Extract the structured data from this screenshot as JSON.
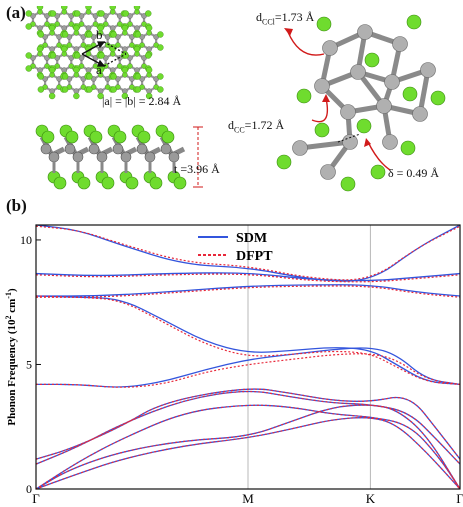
{
  "panel_a": {
    "label": "(a)",
    "lattice_eq": "|a| = |b| = 2.84 Å",
    "vec_a": "a",
    "vec_b": "b",
    "thickness": "t =3.96 Å",
    "dccl": "d",
    "dccl_sub": "CCl",
    "dccl_val": "=1.73 Å",
    "dcc": "d",
    "dcc_sub": "CC",
    "dcc_val": "=1.72 Å",
    "delta": "δ = 0.49 Å"
  },
  "panel_b": {
    "label": "(b)"
  },
  "chart_data": {
    "type": "line",
    "ylabel": "Phonon Frequency (10",
    "ylabel_sup": "2",
    "ylabel_unit": " cm",
    "ylabel_sup2": "-1",
    "ylabel_close": ")",
    "ylim": [
      0,
      10.6
    ],
    "yticks": [
      "0",
      "5",
      "10"
    ],
    "yticks_values": [
      0,
      5,
      10
    ],
    "kpoints": [
      "Γ",
      "M",
      "K",
      "Γ"
    ],
    "kpoint_positions": [
      0,
      0.5,
      0.7887,
      1.0
    ],
    "legend": [
      {
        "name": "SDM",
        "color": "#3355dd",
        "style": "solid"
      },
      {
        "name": "DFPT",
        "color": "#e8283a",
        "style": "dotted"
      }
    ],
    "legend_position": "top-center",
    "series": [
      {
        "name": "SDM",
        "bands": [
          [
            [
              0,
              0
            ],
            [
              0.08,
              0.8
            ],
            [
              0.2,
              1.5
            ],
            [
              0.35,
              1.95
            ],
            [
              0.5,
              2.1
            ],
            [
              0.6,
              2.7
            ],
            [
              0.7,
              3.3
            ],
            [
              0.7887,
              3.4
            ],
            [
              0.85,
              3.2
            ],
            [
              0.92,
              2.2
            ],
            [
              1,
              0
            ]
          ],
          [
            [
              0,
              0
            ],
            [
              0.08,
              0.5
            ],
            [
              0.2,
              1.2
            ],
            [
              0.35,
              1.75
            ],
            [
              0.5,
              2.05
            ],
            [
              0.6,
              2.4
            ],
            [
              0.7,
              2.8
            ],
            [
              0.7887,
              2.9
            ],
            [
              0.85,
              2.6
            ],
            [
              0.92,
              1.5
            ],
            [
              1,
              0
            ]
          ],
          [
            [
              0,
              0
            ],
            [
              0.1,
              1.1
            ],
            [
              0.2,
              2.0
            ],
            [
              0.35,
              3.1
            ],
            [
              0.5,
              3.4
            ],
            [
              0.6,
              3.3
            ],
            [
              0.7,
              3.0
            ],
            [
              0.7887,
              2.9
            ],
            [
              0.88,
              2.6
            ],
            [
              0.95,
              1.3
            ],
            [
              1,
              0
            ]
          ],
          [
            [
              0,
              1.0
            ],
            [
              0.1,
              1.7
            ],
            [
              0.2,
              2.6
            ],
            [
              0.35,
              3.6
            ],
            [
              0.5,
              4.0
            ],
            [
              0.6,
              3.7
            ],
            [
              0.7,
              3.45
            ],
            [
              0.7887,
              3.4
            ],
            [
              0.88,
              3.1
            ],
            [
              0.95,
              1.9
            ],
            [
              1,
              1.0
            ]
          ],
          [
            [
              0,
              1.2
            ],
            [
              0.08,
              1.6
            ],
            [
              0.2,
              2.5
            ],
            [
              0.3,
              3.5
            ],
            [
              0.5,
              4.1
            ],
            [
              0.6,
              3.85
            ],
            [
              0.7,
              3.55
            ],
            [
              0.7887,
              3.5
            ],
            [
              0.88,
              3.8
            ],
            [
              0.95,
              2.3
            ],
            [
              1,
              1.2
            ]
          ],
          [
            [
              0,
              4.2
            ],
            [
              0.1,
              4.2
            ],
            [
              0.2,
              4.05
            ],
            [
              0.3,
              4.3
            ],
            [
              0.4,
              4.8
            ],
            [
              0.5,
              5.2
            ],
            [
              0.6,
              5.4
            ],
            [
              0.7,
              5.6
            ],
            [
              0.7887,
              5.7
            ],
            [
              0.85,
              5.4
            ],
            [
              0.92,
              4.4
            ],
            [
              1,
              4.2
            ]
          ],
          [
            [
              0,
              7.75
            ],
            [
              0.1,
              7.7
            ],
            [
              0.2,
              7.65
            ],
            [
              0.3,
              6.8
            ],
            [
              0.4,
              5.9
            ],
            [
              0.5,
              5.45
            ],
            [
              0.6,
              5.55
            ],
            [
              0.7,
              5.7
            ],
            [
              0.7887,
              5.6
            ],
            [
              0.85,
              5.0
            ],
            [
              0.92,
              4.3
            ],
            [
              1,
              4.2
            ]
          ],
          [
            [
              0,
              7.75
            ],
            [
              0.15,
              7.75
            ],
            [
              0.3,
              7.9
            ],
            [
              0.5,
              8.15
            ],
            [
              0.65,
              8.2
            ],
            [
              0.7887,
              8.2
            ],
            [
              0.9,
              7.9
            ],
            [
              1,
              7.75
            ]
          ],
          [
            [
              0,
              8.65
            ],
            [
              0.15,
              8.55
            ],
            [
              0.3,
              8.65
            ],
            [
              0.5,
              8.7
            ],
            [
              0.65,
              8.4
            ],
            [
              0.7887,
              8.35
            ],
            [
              0.9,
              8.5
            ],
            [
              1,
              8.65
            ]
          ],
          [
            [
              0,
              10.6
            ],
            [
              0.1,
              10.4
            ],
            [
              0.2,
              9.8
            ],
            [
              0.35,
              9.0
            ],
            [
              0.5,
              8.9
            ],
            [
              0.65,
              8.4
            ],
            [
              0.7887,
              8.3
            ],
            [
              0.9,
              9.7
            ],
            [
              1,
              10.6
            ]
          ]
        ]
      },
      {
        "name": "DFPT",
        "bands": [
          [
            [
              0,
              0
            ],
            [
              0.08,
              0.8
            ],
            [
              0.2,
              1.5
            ],
            [
              0.35,
              1.95
            ],
            [
              0.5,
              2.1
            ],
            [
              0.6,
              2.7
            ],
            [
              0.7,
              3.3
            ],
            [
              0.7887,
              3.4
            ],
            [
              0.85,
              3.2
            ],
            [
              0.92,
              2.2
            ],
            [
              1,
              0
            ]
          ],
          [
            [
              0,
              0
            ],
            [
              0.08,
              0.5
            ],
            [
              0.2,
              1.2
            ],
            [
              0.35,
              1.75
            ],
            [
              0.5,
              2.05
            ],
            [
              0.6,
              2.4
            ],
            [
              0.7,
              2.8
            ],
            [
              0.7887,
              2.9
            ],
            [
              0.85,
              2.6
            ],
            [
              0.92,
              1.5
            ],
            [
              1,
              0
            ]
          ],
          [
            [
              0,
              0
            ],
            [
              0.1,
              1.1
            ],
            [
              0.2,
              2.0
            ],
            [
              0.35,
              3.1
            ],
            [
              0.5,
              3.4
            ],
            [
              0.6,
              3.3
            ],
            [
              0.7,
              3.0
            ],
            [
              0.7887,
              2.9
            ],
            [
              0.88,
              2.6
            ],
            [
              0.95,
              1.3
            ],
            [
              1,
              0
            ]
          ],
          [
            [
              0,
              1.0
            ],
            [
              0.1,
              1.7
            ],
            [
              0.2,
              2.6
            ],
            [
              0.35,
              3.6
            ],
            [
              0.5,
              4.0
            ],
            [
              0.6,
              3.7
            ],
            [
              0.7,
              3.45
            ],
            [
              0.7887,
              3.4
            ],
            [
              0.88,
              3.1
            ],
            [
              0.95,
              1.9
            ],
            [
              1,
              1.0
            ]
          ],
          [
            [
              0,
              1.2
            ],
            [
              0.08,
              1.6
            ],
            [
              0.2,
              2.5
            ],
            [
              0.3,
              3.5
            ],
            [
              0.5,
              4.1
            ],
            [
              0.6,
              3.85
            ],
            [
              0.7,
              3.55
            ],
            [
              0.7887,
              3.5
            ],
            [
              0.88,
              3.8
            ],
            [
              0.95,
              2.3
            ],
            [
              1,
              1.2
            ]
          ],
          [
            [
              0,
              4.2
            ],
            [
              0.1,
              4.2
            ],
            [
              0.2,
              4.05
            ],
            [
              0.3,
              4.2
            ],
            [
              0.4,
              4.7
            ],
            [
              0.5,
              5.0
            ],
            [
              0.6,
              5.2
            ],
            [
              0.7,
              5.4
            ],
            [
              0.7887,
              5.45
            ],
            [
              0.85,
              5.2
            ],
            [
              0.92,
              4.4
            ],
            [
              1,
              4.2
            ]
          ],
          [
            [
              0,
              7.75
            ],
            [
              0.1,
              7.7
            ],
            [
              0.2,
              7.6
            ],
            [
              0.3,
              6.7
            ],
            [
              0.4,
              5.8
            ],
            [
              0.5,
              5.3
            ],
            [
              0.6,
              5.4
            ],
            [
              0.7,
              5.55
            ],
            [
              0.7887,
              5.45
            ],
            [
              0.85,
              4.9
            ],
            [
              0.92,
              4.3
            ],
            [
              1,
              4.2
            ]
          ],
          [
            [
              0,
              7.7
            ],
            [
              0.15,
              7.7
            ],
            [
              0.3,
              7.85
            ],
            [
              0.5,
              8.1
            ],
            [
              0.65,
              8.15
            ],
            [
              0.7887,
              8.15
            ],
            [
              0.9,
              7.85
            ],
            [
              1,
              7.7
            ]
          ],
          [
            [
              0,
              8.6
            ],
            [
              0.15,
              8.5
            ],
            [
              0.3,
              8.6
            ],
            [
              0.5,
              8.65
            ],
            [
              0.65,
              8.35
            ],
            [
              0.7887,
              8.3
            ],
            [
              0.9,
              8.45
            ],
            [
              1,
              8.6
            ]
          ],
          [
            [
              0,
              10.55
            ],
            [
              0.1,
              10.4
            ],
            [
              0.2,
              9.85
            ],
            [
              0.35,
              9.1
            ],
            [
              0.5,
              8.95
            ],
            [
              0.65,
              8.45
            ],
            [
              0.7887,
              8.35
            ],
            [
              0.9,
              9.7
            ],
            [
              1,
              10.55
            ]
          ]
        ]
      }
    ]
  }
}
